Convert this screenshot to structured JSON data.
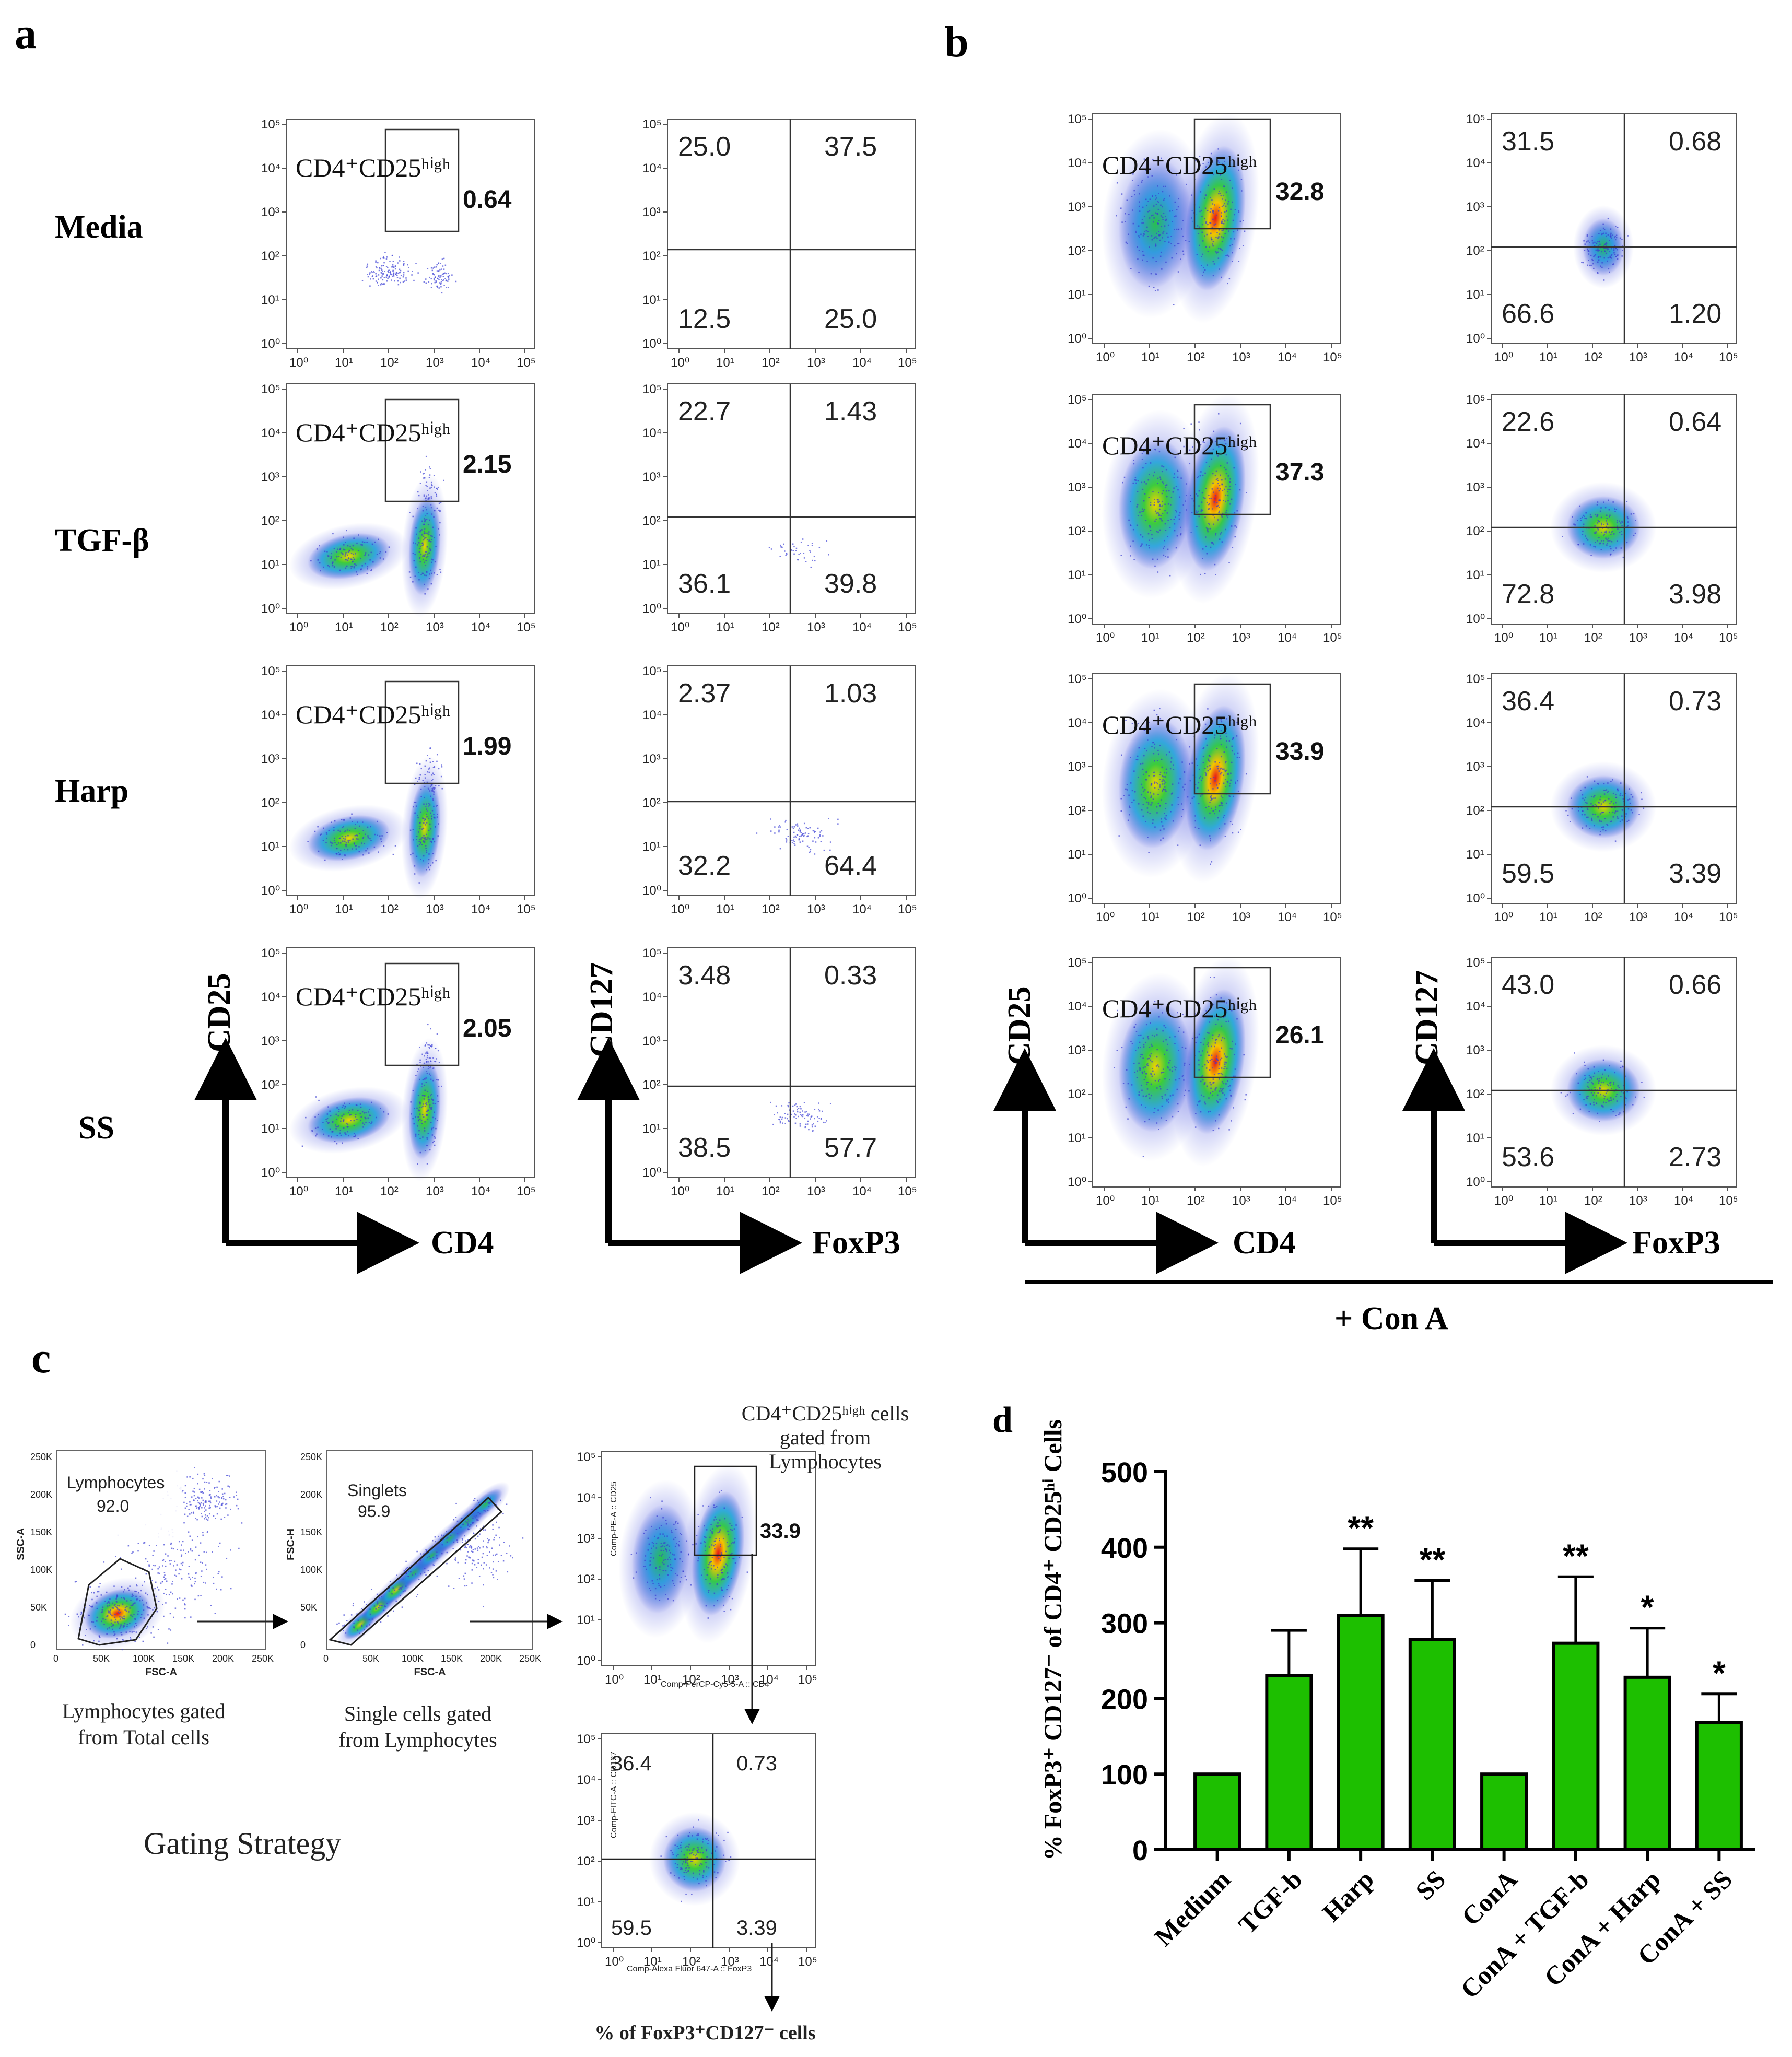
{
  "panels": {
    "a": "a",
    "b": "b",
    "c": "c",
    "d": "d"
  },
  "rows": [
    "Media",
    "TGF-β",
    "Harp",
    "SS"
  ],
  "gate_label": "CD4⁺CD25ʰⁱᵍʰ",
  "panel_a": {
    "cd4_cd25_high": [
      "0.64",
      "2.15",
      "1.99",
      "2.05"
    ],
    "quadrants": [
      [
        "25.0",
        "37.5",
        "12.5",
        "25.0"
      ],
      [
        "22.7",
        "1.43",
        "36.1",
        "39.8"
      ],
      [
        "2.37",
        "1.03",
        "32.2",
        "64.4"
      ],
      [
        "3.48",
        "0.33",
        "38.5",
        "57.7"
      ]
    ]
  },
  "panel_b": {
    "cd4_cd25_high": [
      "32.8",
      "37.3",
      "33.9",
      "26.1"
    ],
    "quadrants": [
      [
        "31.5",
        "0.68",
        "66.6",
        "1.20"
      ],
      [
        "22.6",
        "0.64",
        "72.8",
        "3.98"
      ],
      [
        "36.4",
        "0.73",
        "59.5",
        "3.39"
      ],
      [
        "43.0",
        "0.66",
        "53.6",
        "2.73"
      ]
    ],
    "condition": "+ Con A"
  },
  "axes": {
    "cd25": "CD25",
    "cd4": "CD4",
    "cd127": "CD127",
    "foxp3": "FoxP3"
  },
  "log_ticks": [
    "10⁰",
    "10¹",
    "10²",
    "10³",
    "10⁴",
    "10⁵"
  ],
  "panel_c": {
    "lymph_gate": "Lymphocytes",
    "lymph_pct": "92.0",
    "lymph_caption": "Lymphocytes gated from Total cells",
    "singlets_gate": "Singlets",
    "singlets_pct": "95.9",
    "singlets_caption": "Single cells gated from Lymphocytes",
    "cd4_caption": "CD4⁺CD25ʰⁱᵍʰ cells gated from Lymphocytes",
    "cd4_pct": "33.9",
    "quadrants": [
      "36.4",
      "0.73",
      "59.5",
      "3.39"
    ],
    "final_caption": "% of FoxP3⁺CD127⁻ cells",
    "title": "Gating Strategy",
    "ssc": "SSC-A",
    "fsc": "FSC-A",
    "fsch": "FSC-H",
    "cd25_axis": "Comp-PE-A :: CD25",
    "cd4_axis": "Comp-PerCP-Cy5-5-A :: CD4",
    "cd127_axis": "Comp-FITC-A :: CD127",
    "foxp3_axis": "Comp-Alexa Fluor 647-A :: FoxP3",
    "lin_ticks": [
      "0",
      "50K",
      "100K",
      "150K",
      "200K",
      "250K"
    ]
  },
  "chart_data": {
    "type": "bar",
    "title": "",
    "ylabel": "% FoxP3⁺ CD127⁻ of CD4⁺ CD25ʰⁱ Cells",
    "xlabel": "",
    "categories": [
      "Medium",
      "TGF-b",
      "Harp",
      "SS",
      "ConA",
      "ConA + TGF-b",
      "ConA + Harp",
      "ConA + SS"
    ],
    "values": [
      100,
      230,
      310,
      278,
      100,
      273,
      228,
      168
    ],
    "errors": [
      0,
      60,
      88,
      78,
      0,
      88,
      65,
      38
    ],
    "significance": [
      "",
      "",
      "**",
      "**",
      "",
      "**",
      "*",
      "*"
    ],
    "ylim": [
      0,
      500
    ],
    "yticks": [
      0,
      100,
      200,
      300,
      400,
      500
    ],
    "bar_color": "#1dbf00"
  }
}
